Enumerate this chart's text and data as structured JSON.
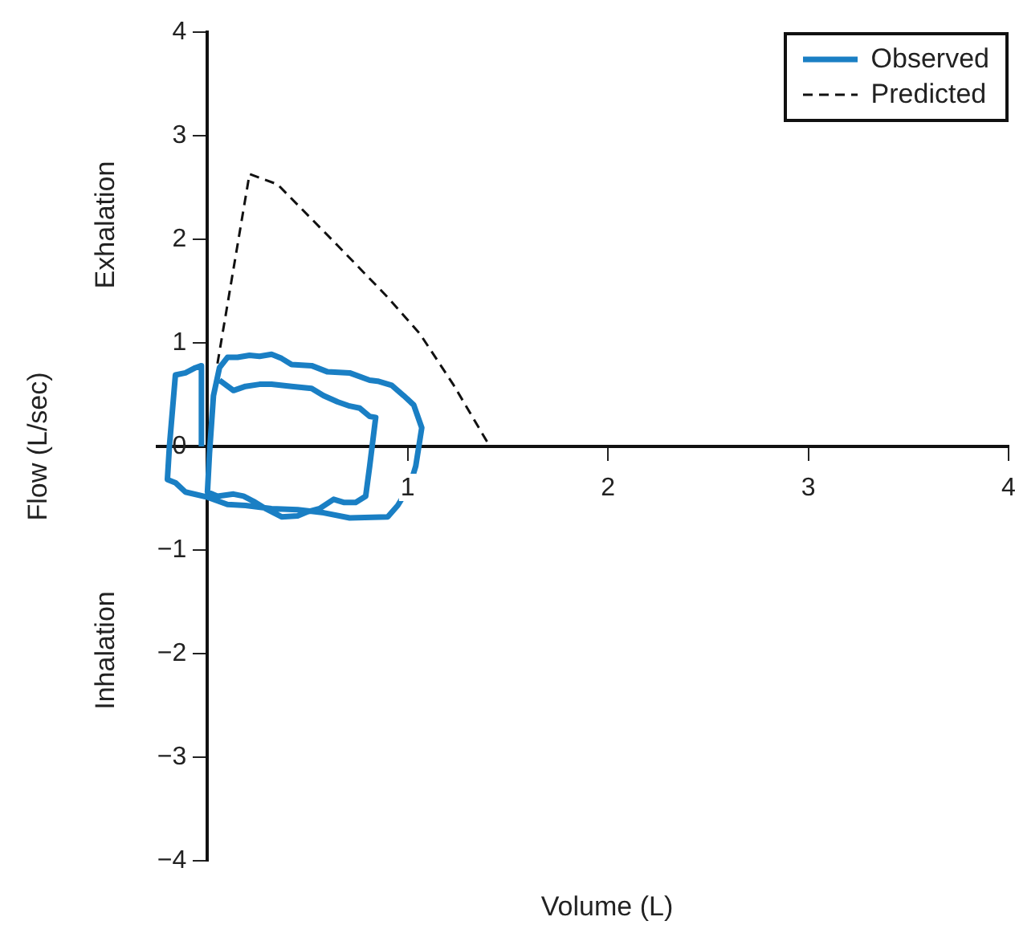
{
  "chart_data": {
    "type": "line",
    "xlabel": "Volume (L)",
    "ylabel": "Flow (L/sec)",
    "annotations": [
      "Exhalation",
      "Inhalation"
    ],
    "xlim": [
      -0.25,
      4
    ],
    "xticks": [
      1,
      2,
      3,
      4
    ],
    "ylim": [
      -4,
      4
    ],
    "yticks": [
      {
        "value": -4,
        "label": "−4"
      },
      {
        "value": -3,
        "label": "−3"
      },
      {
        "value": -2,
        "label": "−2"
      },
      {
        "value": -1,
        "label": "−1"
      },
      0,
      1,
      2,
      3,
      4
    ],
    "grid": false,
    "legend": "top right",
    "marker": "none",
    "series": [
      {
        "name": "Observed",
        "color": "#1a7fc4",
        "line_style": "solid",
        "x": [
          -0.03,
          -0.03,
          -0.06,
          -0.11,
          -0.16,
          -0.19,
          -0.2,
          -0.16,
          -0.11,
          0,
          0.1,
          0.19,
          0.32,
          0.45,
          0.58,
          0.71,
          0.9,
          0.95,
          1.01,
          1.04,
          1.07,
          1.03,
          0.98,
          0.92,
          0.85,
          0.81,
          0.71,
          0.6,
          0.52,
          0.42,
          0.37,
          0.32,
          0.26,
          0.21,
          0.15,
          0.1,
          0.06,
          0.03,
          0.01,
          0,
          0.05,
          0.13,
          0.18,
          0.23,
          0.29,
          0.37,
          0.45,
          0.5,
          0.56,
          0.63,
          0.68,
          0.74,
          0.79,
          0.81,
          0.84,
          0.81,
          0.76,
          0.71,
          0.65,
          0.58,
          0.52,
          0.42,
          0.32,
          0.26,
          0.19,
          0.13,
          0.06
        ],
        "values": [
          0,
          0.78,
          0.76,
          0.71,
          0.69,
          0,
          -0.32,
          -0.35,
          -0.44,
          -0.49,
          -0.56,
          -0.57,
          -0.6,
          -0.61,
          -0.64,
          -0.69,
          -0.68,
          -0.57,
          -0.38,
          -0.19,
          0.18,
          0.4,
          0.49,
          0.59,
          0.63,
          0.64,
          0.71,
          0.72,
          0.78,
          0.79,
          0.85,
          0.89,
          0.87,
          0.88,
          0.86,
          0.86,
          0.76,
          0.49,
          -0.07,
          -0.44,
          -0.48,
          -0.46,
          -0.48,
          -0.53,
          -0.6,
          -0.68,
          -0.67,
          -0.63,
          -0.6,
          -0.51,
          -0.54,
          -0.54,
          -0.48,
          -0.19,
          0.28,
          0.29,
          0.37,
          0.39,
          0.43,
          0.49,
          0.56,
          0.58,
          0.6,
          0.6,
          0.58,
          0.54,
          0.64
        ]
      },
      {
        "name": "Predicted",
        "color": "#111111",
        "line_style": "dashed",
        "x": [
          0.05,
          0.21,
          0.35,
          0.65,
          0.9,
          1.06,
          1.23,
          1.41
        ],
        "values": [
          0.8,
          2.63,
          2.53,
          1.94,
          1.44,
          1.09,
          0.59,
          0
        ]
      }
    ]
  }
}
